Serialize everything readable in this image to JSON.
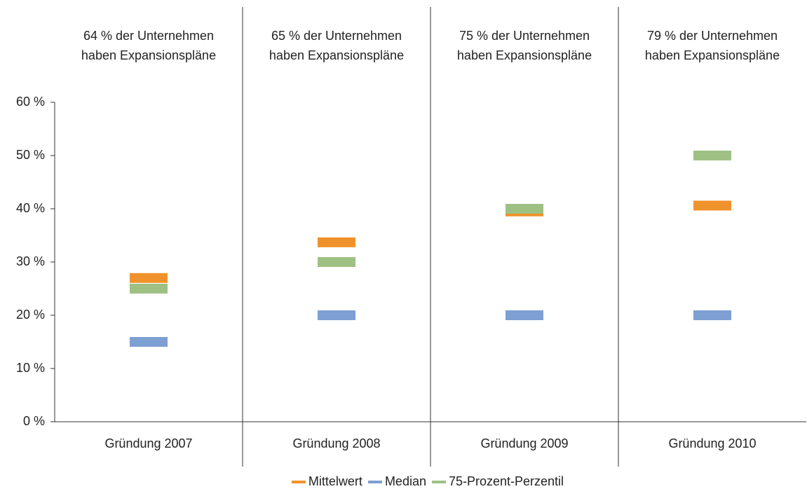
{
  "chart_data": {
    "type": "dash",
    "categories": [
      "Gründung 2007",
      "Gründung 2008",
      "Gründung 2009",
      "Gründung 2010"
    ],
    "annotations": [
      [
        "64 % der Unternehmen",
        "haben Expansionspläne"
      ],
      [
        "65 % der Unternehmen",
        "haben Expansionspläne"
      ],
      [
        "75 % der Unternehmen",
        "haben Expansionspläne"
      ],
      [
        "79 % der Unternehmen",
        "haben Expansionspläne"
      ]
    ],
    "series": [
      {
        "name": "Mittelwert",
        "color": "#f0922b",
        "values": [
          27,
          33.7,
          39.5,
          40.6
        ]
      },
      {
        "name": "Median",
        "color": "#7d9fd2",
        "values": [
          15,
          20,
          20,
          20
        ]
      },
      {
        "name": "75-Prozent-Perzentil",
        "color": "#9ec183",
        "values": [
          25,
          30,
          40,
          50
        ]
      }
    ],
    "ylim": [
      0,
      60
    ],
    "yticks": [
      {
        "value": 0,
        "label": "0 %"
      },
      {
        "value": 10,
        "label": "10 %"
      },
      {
        "value": 20,
        "label": "20 %"
      },
      {
        "value": 30,
        "label": "30 %"
      },
      {
        "value": 40,
        "label": "40 %"
      },
      {
        "value": 50,
        "label": "50 %"
      },
      {
        "value": 60,
        "label": "60 %"
      }
    ],
    "legend": "bottom"
  }
}
